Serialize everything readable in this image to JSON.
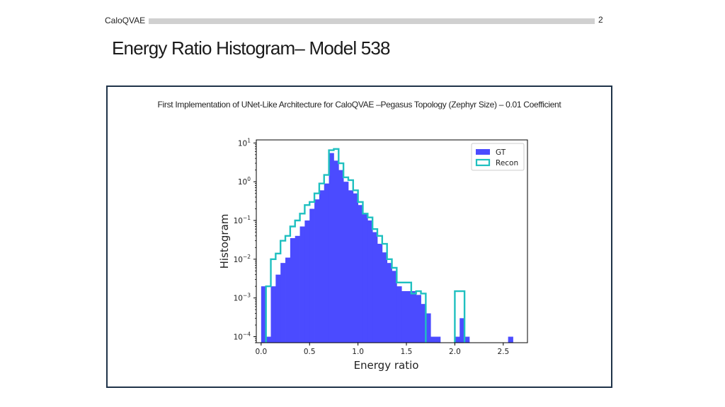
{
  "header": {
    "label": "CaloQVAE",
    "page_number": "2"
  },
  "slide": {
    "title": "Energy Ratio Histogram– Model 538",
    "caption": "First Implementation of UNet-Like Architecture for CaloQVAE –Pegasus Topology (Zephyr Size) – 0.01 Coefficient"
  },
  "chart_data": {
    "type": "bar",
    "xlabel": "Energy ratio",
    "ylabel": "Histogram",
    "xlim": [
      -0.05,
      2.75
    ],
    "ylim": [
      7e-05,
      12
    ],
    "yscale": "log",
    "grid": false,
    "legend_position": "top-right",
    "bin_width": 0.05,
    "xticks": [
      "0.0",
      "0.5",
      "1.0",
      "1.5",
      "2.0",
      "2.5"
    ],
    "yticks": [
      {
        "base": "10",
        "exp": "1"
      },
      {
        "base": "10",
        "exp": "0"
      },
      {
        "base": "10",
        "exp": "−1"
      },
      {
        "base": "10",
        "exp": "−2"
      },
      {
        "base": "10",
        "exp": "−3"
      },
      {
        "base": "10",
        "exp": "−4"
      }
    ],
    "series": [
      {
        "name": "GT",
        "style": "filled",
        "color": "#4b4bff",
        "bin_left": [
          0.0,
          0.05,
          0.1,
          0.15,
          0.2,
          0.25,
          0.3,
          0.35,
          0.4,
          0.45,
          0.5,
          0.55,
          0.6,
          0.65,
          0.7,
          0.75,
          0.8,
          0.85,
          0.9,
          0.95,
          1.0,
          1.05,
          1.1,
          1.15,
          1.2,
          1.25,
          1.3,
          1.35,
          1.4,
          1.45,
          1.5,
          1.55,
          1.6,
          1.65,
          1.7,
          1.75,
          1.8,
          2.0,
          2.05,
          2.1,
          2.55
        ],
        "values": [
          0.002,
          0.0001,
          0.002,
          0.004,
          0.008,
          0.011,
          0.035,
          0.04,
          0.07,
          0.1,
          0.2,
          0.35,
          0.6,
          0.9,
          5.5,
          3.5,
          2.0,
          1.0,
          0.6,
          0.5,
          0.25,
          0.15,
          0.1,
          0.05,
          0.025,
          0.015,
          0.008,
          0.005,
          0.002,
          0.0015,
          0.0015,
          0.0015,
          0.0012,
          0.0007,
          0.0004,
          0.0001,
          0.0001,
          0.0001,
          0.0003,
          0.0001,
          0.0001
        ]
      },
      {
        "name": "Recon",
        "style": "step",
        "color": "#1fc0c0",
        "bin_left": [
          0.05,
          0.1,
          0.15,
          0.2,
          0.25,
          0.3,
          0.35,
          0.4,
          0.45,
          0.5,
          0.55,
          0.6,
          0.65,
          0.7,
          0.75,
          0.8,
          0.85,
          0.9,
          0.95,
          1.0,
          1.05,
          1.1,
          1.15,
          1.2,
          1.25,
          1.3,
          1.35,
          1.4,
          1.45,
          1.5,
          1.55,
          1.6,
          1.65,
          2.0,
          2.05
        ],
        "values": [
          0.002,
          0.01,
          0.014,
          0.03,
          0.04,
          0.07,
          0.1,
          0.15,
          0.25,
          0.3,
          0.5,
          0.9,
          1.5,
          6.5,
          7.0,
          3.0,
          1.3,
          1.1,
          0.6,
          0.3,
          0.15,
          0.12,
          0.06,
          0.04,
          0.025,
          0.01,
          0.006,
          0.0025,
          0.0025,
          0.0025,
          0.0013,
          0.0015,
          0.0013,
          0.0015,
          0.0015
        ]
      }
    ]
  }
}
